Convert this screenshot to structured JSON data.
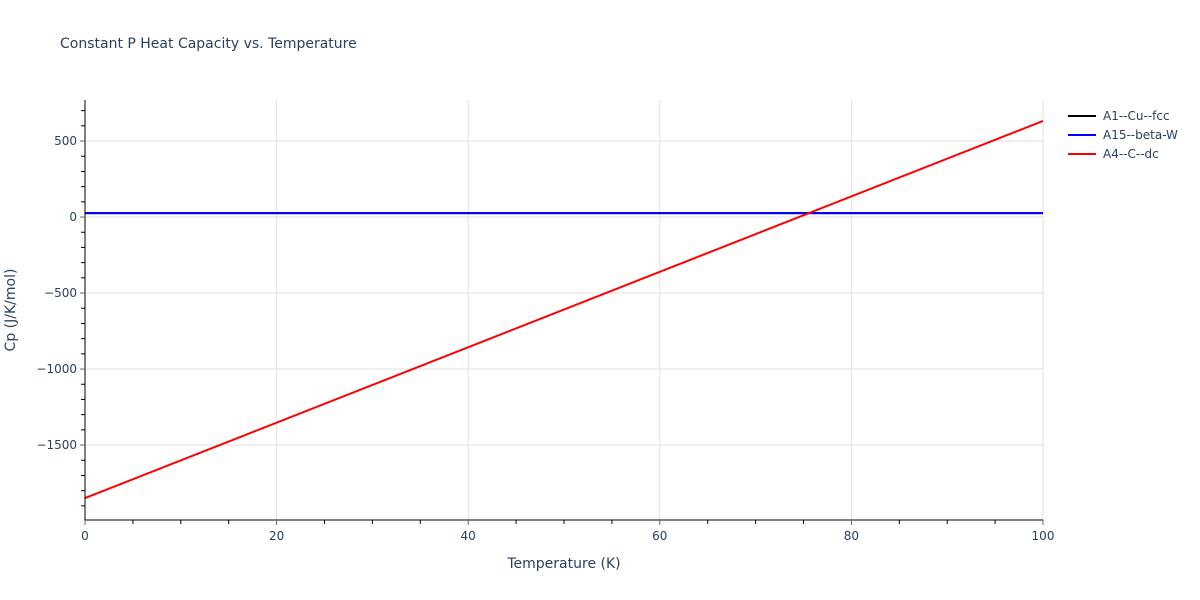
{
  "chart_data": {
    "type": "line",
    "title": "Constant P Heat Capacity vs. Temperature",
    "xlabel": "Temperature (K)",
    "ylabel": "Cp (J/K/mol)",
    "xlim": [
      0,
      100
    ],
    "ylim": [
      -1993,
      770
    ],
    "x_ticks": [
      0,
      20,
      40,
      60,
      80,
      100
    ],
    "y_ticks": [
      -1500,
      -1000,
      -500,
      0,
      500
    ],
    "x_tick_labels": [
      "0",
      "20",
      "40",
      "60",
      "80",
      "100"
    ],
    "y_tick_labels": [
      "−1500",
      "−1000",
      "−500",
      "0",
      "500"
    ],
    "grid": true,
    "legend_position": "right",
    "series": [
      {
        "name": "A1--Cu--fcc",
        "color": "#000000",
        "x": [
          0,
          100
        ],
        "y": [
          26,
          26
        ]
      },
      {
        "name": "A15--beta-W",
        "color": "#0000ff",
        "x": [
          0,
          100
        ],
        "y": [
          26,
          26
        ]
      },
      {
        "name": "A4--C--dc",
        "color": "#ff0000",
        "x": [
          0,
          100
        ],
        "y": [
          -1849,
          632
        ]
      }
    ]
  },
  "legend": {
    "items": [
      {
        "label": "A1--Cu--fcc",
        "color": "#000000"
      },
      {
        "label": "A15--beta-W",
        "color": "#0000ff"
      },
      {
        "label": "A4--C--dc",
        "color": "#ff0000"
      }
    ]
  }
}
